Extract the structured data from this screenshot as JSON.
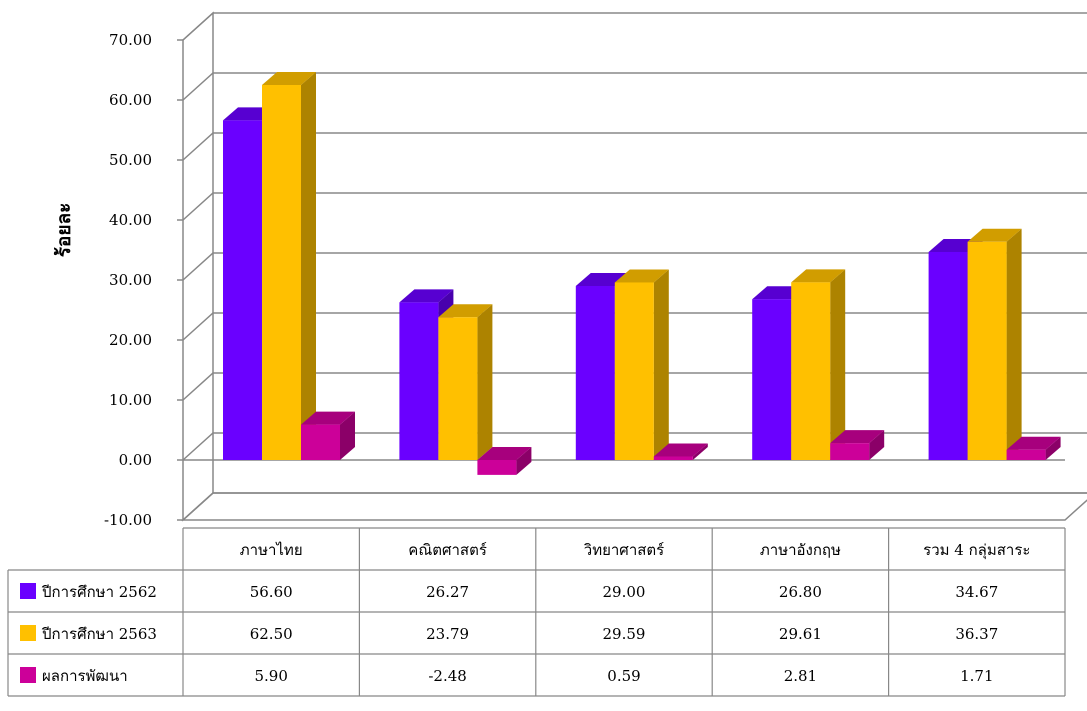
{
  "chart_data": {
    "type": "bar",
    "ylabel": "ร้อยละ",
    "xlabel": "",
    "ylim": [
      -10,
      70
    ],
    "yticks": [
      "70.00",
      "60.00",
      "50.00",
      "40.00",
      "30.00",
      "20.00",
      "10.00",
      "0.00",
      "-10.00"
    ],
    "categories": [
      "ภาษาไทย",
      "คณิตศาสตร์",
      "วิทยาศาสตร์",
      "ภาษาอังกฤษ",
      "รวม 4 กลุ่มสาระ"
    ],
    "series": [
      {
        "name": "ปีการศึกษา 2562",
        "color": "#6a00ff",
        "values": [
          56.6,
          26.27,
          29.0,
          26.8,
          34.67
        ],
        "labels": [
          "56.60",
          "26.27",
          "29.00",
          "26.80",
          "34.67"
        ]
      },
      {
        "name": "ปีการศึกษา 2563",
        "color": "#ffc000",
        "values": [
          62.5,
          23.79,
          29.59,
          29.61,
          36.37
        ],
        "labels": [
          "62.50",
          "23.79",
          "29.59",
          "29.61",
          "36.37"
        ]
      },
      {
        "name": "ผลการพัฒนา",
        "color": "#cc0099",
        "values": [
          5.9,
          -2.48,
          0.59,
          2.81,
          1.71
        ],
        "labels": [
          "5.90",
          "-2.48",
          "0.59",
          "2.81",
          "1.71"
        ]
      }
    ],
    "grid": true,
    "legend": "data-table",
    "style": "3d-clustered-column"
  }
}
